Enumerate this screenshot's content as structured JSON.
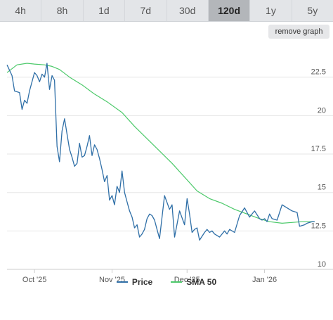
{
  "tabs": [
    {
      "label": "4h",
      "active": false
    },
    {
      "label": "8h",
      "active": false
    },
    {
      "label": "1d",
      "active": false
    },
    {
      "label": "7d",
      "active": false
    },
    {
      "label": "30d",
      "active": false
    },
    {
      "label": "120d",
      "active": true
    },
    {
      "label": "1y",
      "active": false
    },
    {
      "label": "5y",
      "active": false
    }
  ],
  "remove_graph_label": "remove graph",
  "colors": {
    "price": "#2f6fa7",
    "sma": "#4cc96a",
    "grid": "#e6e6e6",
    "active_tab": "#b3b6ba"
  },
  "chart_data": {
    "type": "line",
    "title": "",
    "x_axis": {
      "type": "date",
      "range": [
        "2025-09-20",
        "2026-01-25"
      ],
      "ticks": [
        "Oct '25",
        "Nov '25",
        "Dec '25",
        "Jan '26"
      ],
      "tick_dates": [
        "2025-10-01",
        "2025-11-01",
        "2025-12-01",
        "2026-01-01"
      ]
    },
    "y_axis": {
      "range": [
        10,
        24.5
      ],
      "ticks": [
        10,
        12.5,
        15,
        17.5,
        20,
        22.5
      ],
      "position": "right"
    },
    "grid": true,
    "legend_position": "bottom",
    "series": [
      {
        "name": "Price",
        "x": [
          "2025-09-20",
          "2025-09-22",
          "2025-09-23",
          "2025-09-25",
          "2025-09-26",
          "2025-09-27",
          "2025-09-28",
          "2025-09-29",
          "2025-10-01",
          "2025-10-02",
          "2025-10-03",
          "2025-10-04",
          "2025-10-05",
          "2025-10-06",
          "2025-10-07",
          "2025-10-08",
          "2025-10-09",
          "2025-10-10",
          "2025-10-11",
          "2025-10-12",
          "2025-10-13",
          "2025-10-14",
          "2025-10-15",
          "2025-10-16",
          "2025-10-17",
          "2025-10-18",
          "2025-10-19",
          "2025-10-20",
          "2025-10-21",
          "2025-10-22",
          "2025-10-23",
          "2025-10-24",
          "2025-10-25",
          "2025-10-26",
          "2025-10-27",
          "2025-10-28",
          "2025-10-29",
          "2025-10-30",
          "2025-10-31",
          "2025-11-01",
          "2025-11-02",
          "2025-11-03",
          "2025-11-04",
          "2025-11-05",
          "2025-11-06",
          "2025-11-07",
          "2025-11-08",
          "2025-11-09",
          "2025-11-10",
          "2025-11-11",
          "2025-11-12",
          "2025-11-13",
          "2025-11-14",
          "2025-11-15",
          "2025-11-16",
          "2025-11-17",
          "2025-11-18",
          "2025-11-19",
          "2025-11-20",
          "2025-11-22",
          "2025-11-24",
          "2025-11-25",
          "2025-11-26",
          "2025-11-28",
          "2025-11-30",
          "2025-12-01",
          "2025-12-02",
          "2025-12-03",
          "2025-12-04",
          "2025-12-05",
          "2025-12-06",
          "2025-12-08",
          "2025-12-09",
          "2025-12-10",
          "2025-12-11",
          "2025-12-12",
          "2025-12-14",
          "2025-12-15",
          "2025-12-16",
          "2025-12-17",
          "2025-12-18",
          "2025-12-20",
          "2025-12-22",
          "2025-12-24",
          "2025-12-26",
          "2025-12-28",
          "2025-12-30",
          "2025-12-31",
          "2026-01-01",
          "2026-01-02",
          "2026-01-03",
          "2026-01-04",
          "2026-01-06",
          "2026-01-08",
          "2026-01-10",
          "2026-01-12",
          "2026-01-14",
          "2026-01-15",
          "2026-01-17",
          "2026-01-18",
          "2026-01-20",
          "2026-01-21"
        ],
        "y": [
          23.3,
          22.6,
          21.6,
          21.5,
          20.4,
          21.0,
          20.8,
          21.6,
          22.8,
          22.6,
          22.2,
          22.7,
          22.5,
          23.4,
          21.7,
          22.6,
          22.3,
          18.0,
          17.0,
          19.0,
          19.8,
          18.8,
          17.8,
          17.3,
          16.7,
          16.9,
          18.2,
          17.3,
          17.4,
          18.0,
          18.7,
          17.4,
          18.1,
          17.8,
          17.2,
          16.5,
          15.7,
          16.1,
          14.5,
          14.8,
          14.2,
          15.4,
          15.0,
          16.4,
          15.0,
          14.4,
          13.8,
          13.4,
          12.7,
          12.9,
          12.1,
          12.3,
          12.6,
          13.3,
          13.6,
          13.5,
          13.2,
          12.6,
          12.0,
          14.8,
          13.9,
          14.2,
          12.1,
          13.8,
          12.9,
          14.6,
          13.6,
          12.4,
          12.6,
          12.7,
          11.9,
          12.4,
          12.6,
          12.4,
          12.5,
          12.3,
          12.1,
          12.3,
          12.5,
          12.3,
          12.6,
          12.4,
          13.5,
          14.0,
          13.4,
          13.8,
          13.3,
          13.2,
          13.3,
          13.1,
          13.6,
          13.3,
          13.2,
          14.2,
          14.0,
          13.8,
          13.7,
          12.8,
          12.9,
          13.0,
          13.1,
          13.1
        ]
      },
      {
        "name": "SMA 50",
        "x": [
          "2025-09-20",
          "2025-09-24",
          "2025-09-28",
          "2025-10-01",
          "2025-10-05",
          "2025-10-08",
          "2025-10-11",
          "2025-10-15",
          "2025-10-20",
          "2025-10-25",
          "2025-10-30",
          "2025-11-05",
          "2025-11-10",
          "2025-11-15",
          "2025-11-20",
          "2025-11-25",
          "2025-11-30",
          "2025-12-05",
          "2025-12-10",
          "2025-12-15",
          "2025-12-20",
          "2025-12-25",
          "2025-12-30",
          "2026-01-03",
          "2026-01-08",
          "2026-01-12",
          "2026-01-16",
          "2026-01-21"
        ],
        "y": [
          22.8,
          23.3,
          23.4,
          23.35,
          23.3,
          23.2,
          23.0,
          22.5,
          22.0,
          21.4,
          20.9,
          20.2,
          19.3,
          18.5,
          17.7,
          16.9,
          16.0,
          15.1,
          14.6,
          14.3,
          13.9,
          13.6,
          13.3,
          13.1,
          13.0,
          13.05,
          13.1,
          13.1
        ]
      }
    ]
  }
}
